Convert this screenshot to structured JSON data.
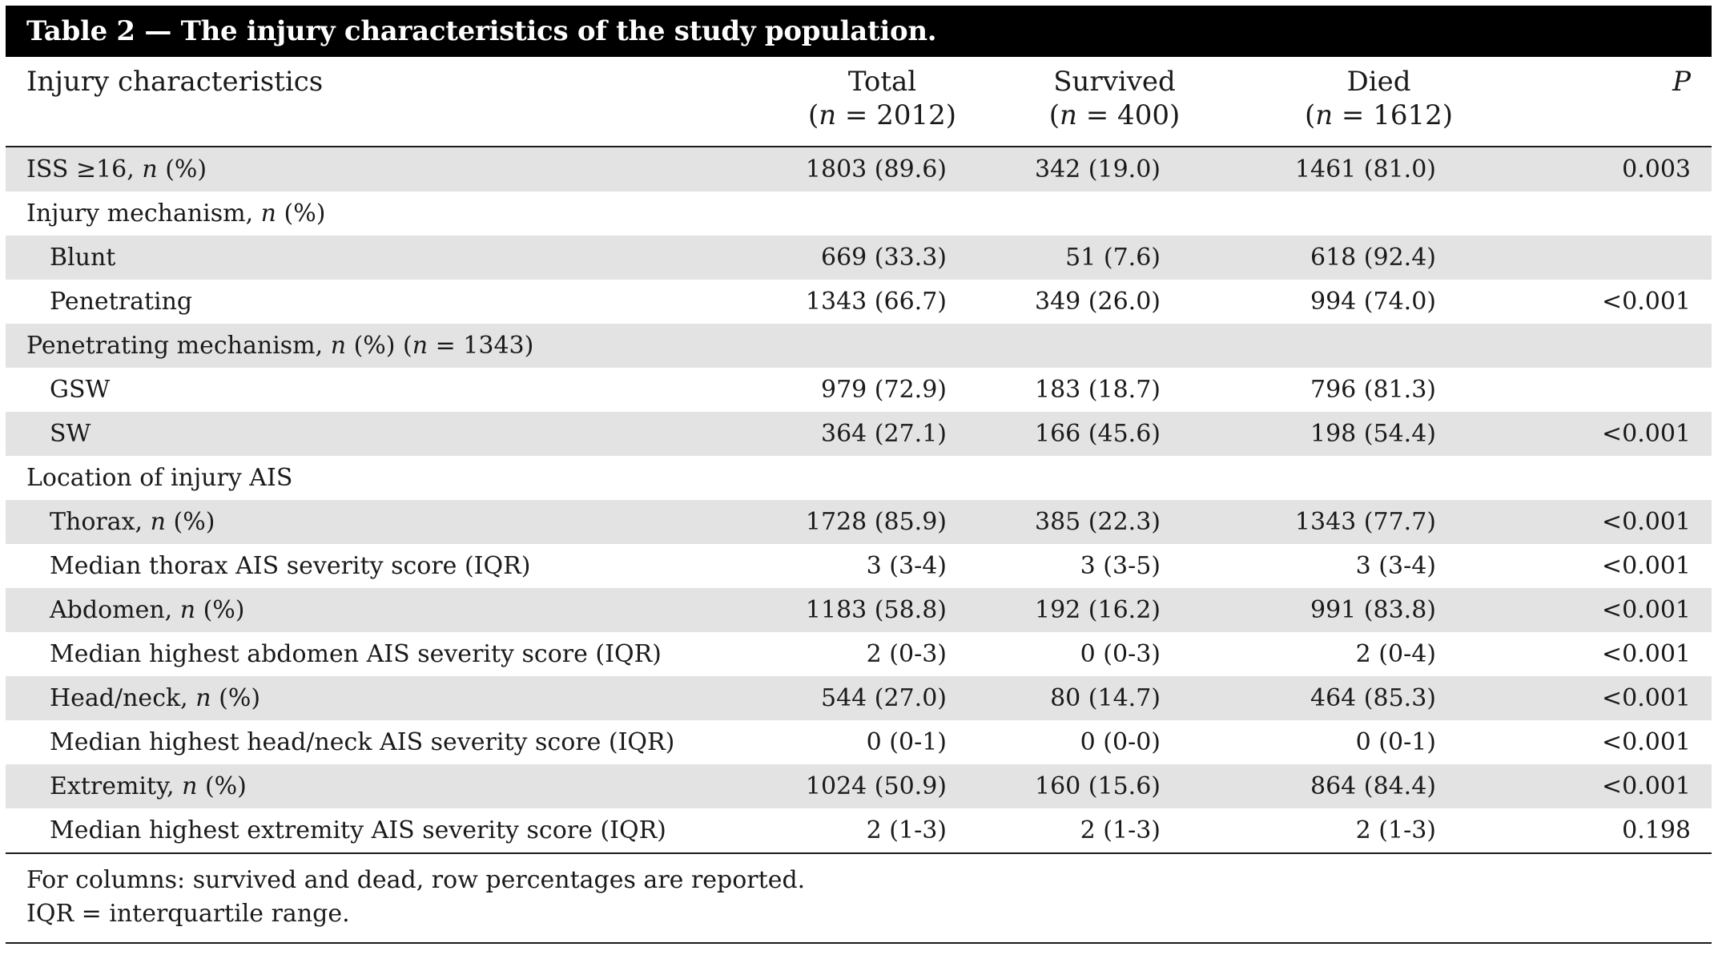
{
  "title": "Table 2 — The injury characteristics of the study population.",
  "header": {
    "label": "Injury characteristics",
    "total": {
      "name": "Total",
      "n_open": "(",
      "n_var": "n",
      "n_rest": " = 2012)"
    },
    "survived": {
      "name": "Survived",
      "n_open": "(",
      "n_var": "n",
      "n_rest": " = 400)"
    },
    "died": {
      "name": "Died",
      "n_open": "(",
      "n_var": "n",
      "n_rest": " = 1612)"
    },
    "p": "P"
  },
  "rows": [
    {
      "pre": "ISS ≥16, ",
      "it": "n",
      "post": " (%)",
      "total": "1803 (89.6)",
      "survived": "342 (19.0)",
      "died": "1461 (81.0)",
      "p": "0.003"
    },
    {
      "pre": "Injury mechanism, ",
      "it": "n",
      "post": " (%)",
      "total": "",
      "survived": "",
      "died": "",
      "p": ""
    },
    {
      "pre": "Blunt",
      "it": "",
      "post": "",
      "total": "669 (33.3)",
      "survived": "51 (7.6)",
      "died": "618 (92.4)",
      "p": ""
    },
    {
      "pre": "Penetrating",
      "it": "",
      "post": "",
      "total": "1343 (66.7)",
      "survived": "349 (26.0)",
      "died": "994 (74.0)",
      "p": "<0.001"
    },
    {
      "pre": "Penetrating mechanism, ",
      "it": "n",
      "post": " (%) (",
      "it2": "n",
      "post2": " = 1343)",
      "total": "",
      "survived": "",
      "died": "",
      "p": ""
    },
    {
      "pre": "GSW",
      "it": "",
      "post": "",
      "total": "979 (72.9)",
      "survived": "183 (18.7)",
      "died": "796 (81.3)",
      "p": ""
    },
    {
      "pre": "SW",
      "it": "",
      "post": "",
      "total": "364 (27.1)",
      "survived": "166 (45.6)",
      "died": "198 (54.4)",
      "p": "<0.001"
    },
    {
      "pre": "Location of injury AIS",
      "it": "",
      "post": "",
      "total": "",
      "survived": "",
      "died": "",
      "p": ""
    },
    {
      "pre": "Thorax, ",
      "it": "n",
      "post": " (%)",
      "total": "1728 (85.9)",
      "survived": "385 (22.3)",
      "died": "1343 (77.7)",
      "p": "<0.001"
    },
    {
      "pre": "Median thorax AIS severity score (IQR)",
      "it": "",
      "post": "",
      "total": "3 (3-4)",
      "survived": "3 (3-5)",
      "died": "3 (3-4)",
      "p": "<0.001"
    },
    {
      "pre": "Abdomen, ",
      "it": "n",
      "post": " (%)",
      "total": "1183 (58.8)",
      "survived": "192 (16.2)",
      "died": "991 (83.8)",
      "p": "<0.001"
    },
    {
      "pre": "Median highest abdomen AIS severity score (IQR)",
      "it": "",
      "post": "",
      "total": "2 (0-3)",
      "survived": "0 (0-3)",
      "died": "2 (0-4)",
      "p": "<0.001"
    },
    {
      "pre": "Head/neck, ",
      "it": "n",
      "post": " (%)",
      "total": "544 (27.0)",
      "survived": "80 (14.7)",
      "died": "464 (85.3)",
      "p": "<0.001"
    },
    {
      "pre": "Median highest head/neck AIS severity score (IQR)",
      "it": "",
      "post": "",
      "total": "0 (0-1)",
      "survived": "0 (0-0)",
      "died": "0 (0-1)",
      "p": "<0.001"
    },
    {
      "pre": "Extremity, ",
      "it": "n",
      "post": " (%)",
      "total": "1024 (50.9)",
      "survived": "160 (15.6)",
      "died": "864 (84.4)",
      "p": "<0.001"
    },
    {
      "pre": "Median highest extremity AIS severity score (IQR)",
      "it": "",
      "post": "",
      "total": "2 (1-3)",
      "survived": "2 (1-3)",
      "died": "2 (1-3)",
      "p": "0.198"
    }
  ],
  "footnotes": [
    "For columns: survived and dead, row percentages are reported.",
    "IQR = interquartile range."
  ]
}
